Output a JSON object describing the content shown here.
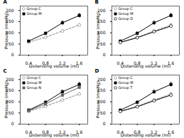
{
  "chart_data": [
    {
      "type": "line",
      "title": "A",
      "x": [
        0.4,
        0.8,
        1.2,
        1.6
      ],
      "series": [
        {
          "name": "Group C",
          "color": "#888888",
          "marker": "open-circle",
          "line_style": "dashed",
          "values": [
            58,
            80,
            108,
            135
          ],
          "yerr": [
            3,
            4,
            5,
            7
          ]
        },
        {
          "name": "Group M",
          "color": "black",
          "marker": "square",
          "line_style": "solid",
          "values": [
            63,
            98,
            145,
            178
          ],
          "yerr": [
            4,
            6,
            9,
            10
          ]
        }
      ],
      "xlabel": "Distending volume (ml)",
      "ylabel": "Pressure (mmHg)",
      "xlim": [
        0.2,
        1.8
      ],
      "xticks": [
        0.4,
        0.8,
        1.2,
        1.6
      ],
      "ylim": [
        0,
        220
      ],
      "yticks": [
        0,
        50,
        100,
        150,
        200
      ],
      "legend": "top-left"
    },
    {
      "type": "line",
      "title": "B",
      "x": [
        0.4,
        0.8,
        1.2,
        1.6
      ],
      "series": [
        {
          "name": "Group C",
          "color": "#888888",
          "marker": "open-circle",
          "line_style": "dashed",
          "values": [
            58,
            80,
            108,
            135
          ],
          "yerr": [
            3,
            4,
            5,
            7
          ]
        },
        {
          "name": "Group M",
          "color": "black",
          "marker": "square",
          "line_style": "solid",
          "values": [
            63,
            98,
            145,
            178
          ],
          "yerr": [
            4,
            6,
            9,
            10
          ]
        },
        {
          "name": "Group D",
          "color": "black",
          "marker": "open-circle",
          "line_style": "solid",
          "values": [
            57,
            78,
            105,
            130
          ],
          "yerr": [
            3,
            4,
            5,
            6
          ]
        }
      ],
      "xlabel": "Distending volume (ml)",
      "ylabel": "Pressure (mmHg)",
      "xlim": [
        0.2,
        1.8
      ],
      "xticks": [
        0.4,
        0.8,
        1.2,
        1.6
      ],
      "ylim": [
        0,
        220
      ],
      "yticks": [
        0,
        50,
        100,
        150,
        200
      ],
      "legend": "top-left"
    },
    {
      "type": "line",
      "title": "C",
      "x": [
        0.4,
        0.8,
        1.2,
        1.6
      ],
      "series": [
        {
          "name": "Group C",
          "color": "#888888",
          "marker": "open-circle",
          "line_style": "dashed",
          "values": [
            58,
            80,
            108,
            135
          ],
          "yerr": [
            3,
            4,
            5,
            7
          ]
        },
        {
          "name": "Group M",
          "color": "black",
          "marker": "square",
          "line_style": "solid",
          "values": [
            63,
            98,
            145,
            178
          ],
          "yerr": [
            4,
            6,
            9,
            10
          ]
        },
        {
          "name": "Group N",
          "color": "#666666",
          "marker": "square",
          "line_style": "solid",
          "values": [
            60,
            90,
            130,
            165
          ],
          "yerr": [
            3,
            5,
            7,
            9
          ]
        }
      ],
      "xlabel": "Distending volume (ml)",
      "ylabel": "Pressure (mmHg)",
      "xlim": [
        0.2,
        1.8
      ],
      "xticks": [
        0.4,
        0.8,
        1.2,
        1.6
      ],
      "ylim": [
        0,
        220
      ],
      "yticks": [
        0,
        50,
        100,
        150,
        200
      ],
      "legend": "top-left"
    },
    {
      "type": "line",
      "title": "D",
      "x": [
        0.4,
        0.8,
        1.2,
        1.6
      ],
      "series": [
        {
          "name": "Group C",
          "color": "#888888",
          "marker": "open-circle",
          "line_style": "dashed",
          "values": [
            58,
            80,
            108,
            135
          ],
          "yerr": [
            3,
            4,
            5,
            7
          ]
        },
        {
          "name": "Group M",
          "color": "black",
          "marker": "square",
          "line_style": "solid",
          "values": [
            63,
            98,
            145,
            178
          ],
          "yerr": [
            4,
            6,
            9,
            10
          ]
        },
        {
          "name": "Group T",
          "color": "black",
          "marker": "open-circle",
          "line_style": "solid",
          "values": [
            57,
            78,
            105,
            130
          ],
          "yerr": [
            3,
            4,
            5,
            6
          ]
        }
      ],
      "xlabel": "Distending volume (ml)",
      "ylabel": "Pressure (mmHg)",
      "xlim": [
        0.2,
        1.8
      ],
      "xticks": [
        0.4,
        0.8,
        1.2,
        1.6
      ],
      "ylim": [
        0,
        220
      ],
      "yticks": [
        0,
        50,
        100,
        150,
        200
      ],
      "legend": "top-left"
    }
  ]
}
